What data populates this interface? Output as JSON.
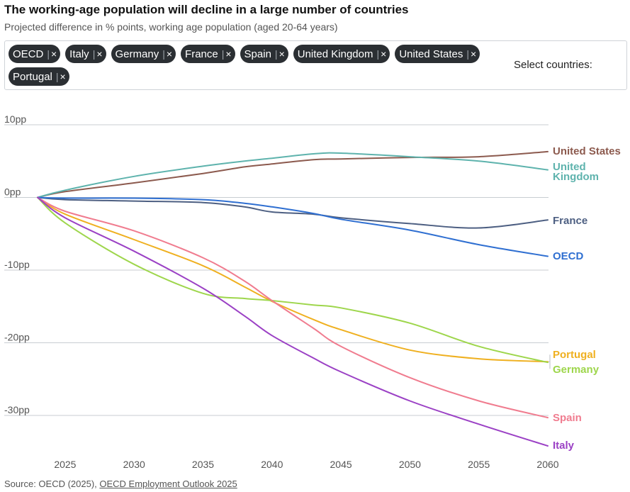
{
  "header": {
    "title": "The working-age population will decline in a large number of countries",
    "subtitle": "Projected difference in % points, working age population (aged 20-64 years)"
  },
  "selector": {
    "label": "Select countries:",
    "chips": [
      "OECD",
      "Italy",
      "Germany",
      "France",
      "Spain",
      "United Kingdom",
      "United States",
      "Portugal"
    ],
    "chip_separator": "|",
    "remove_glyph": "×"
  },
  "source": {
    "prefix": "Source: OECD (2025), ",
    "link_text": "OECD Employment Outlook 2025"
  },
  "chart_data": {
    "type": "line",
    "title": "",
    "xlabel": "",
    "ylabel": "",
    "x": [
      2023,
      2025,
      2030,
      2035,
      2038,
      2040,
      2043,
      2045,
      2050,
      2055,
      2060
    ],
    "xticks": [
      2025,
      2030,
      2035,
      2040,
      2045,
      2050,
      2055,
      2060
    ],
    "xlim": [
      2023,
      2060
    ],
    "yticks": [
      10,
      0,
      -10,
      -20,
      -30
    ],
    "ytick_labels": [
      "10pp",
      "0pp",
      "-10pp",
      "-20pp",
      "-30pp"
    ],
    "ylim": [
      -35,
      11
    ],
    "grid": true,
    "legend": "end-of-line labels",
    "series": [
      {
        "name": "United States",
        "color": "#8c5a4e",
        "values": [
          0,
          0.8,
          2.0,
          3.3,
          4.2,
          4.6,
          5.2,
          5.3,
          5.5,
          5.6,
          6.3
        ]
      },
      {
        "name": "United Kingdom",
        "color": "#5eb3ad",
        "values": [
          0,
          1.0,
          2.9,
          4.3,
          5.0,
          5.4,
          6.0,
          6.1,
          5.6,
          5.0,
          3.8
        ]
      },
      {
        "name": "France",
        "color": "#4d5f82",
        "values": [
          0,
          -0.3,
          -0.5,
          -0.7,
          -1.3,
          -2.0,
          -2.3,
          -2.8,
          -3.6,
          -4.2,
          -3.1
        ]
      },
      {
        "name": "OECD",
        "color": "#2f6fd1",
        "values": [
          0,
          -0.1,
          -0.1,
          -0.3,
          -0.8,
          -1.3,
          -2.2,
          -3.0,
          -4.5,
          -6.5,
          -8.1
        ]
      },
      {
        "name": "Portugal",
        "color": "#efb020",
        "values": [
          0,
          -2.3,
          -5.8,
          -9.4,
          -12.3,
          -14.3,
          -16.8,
          -18.2,
          -21.0,
          -22.2,
          -22.6
        ]
      },
      {
        "name": "Germany",
        "color": "#9ed64c",
        "values": [
          0,
          -3.5,
          -9.2,
          -13.2,
          -13.9,
          -14.2,
          -14.8,
          -15.2,
          -17.3,
          -20.5,
          -22.7
        ]
      },
      {
        "name": "Spain",
        "color": "#f07c8f",
        "values": [
          0,
          -1.9,
          -4.6,
          -8.3,
          -11.5,
          -14.2,
          -18.0,
          -20.5,
          -24.8,
          -28.0,
          -30.3
        ]
      },
      {
        "name": "Italy",
        "color": "#9b41c5",
        "values": [
          0,
          -2.8,
          -7.4,
          -12.5,
          -16.3,
          -19.0,
          -22.1,
          -24.0,
          -28.0,
          -31.2,
          -34.2
        ]
      }
    ]
  }
}
